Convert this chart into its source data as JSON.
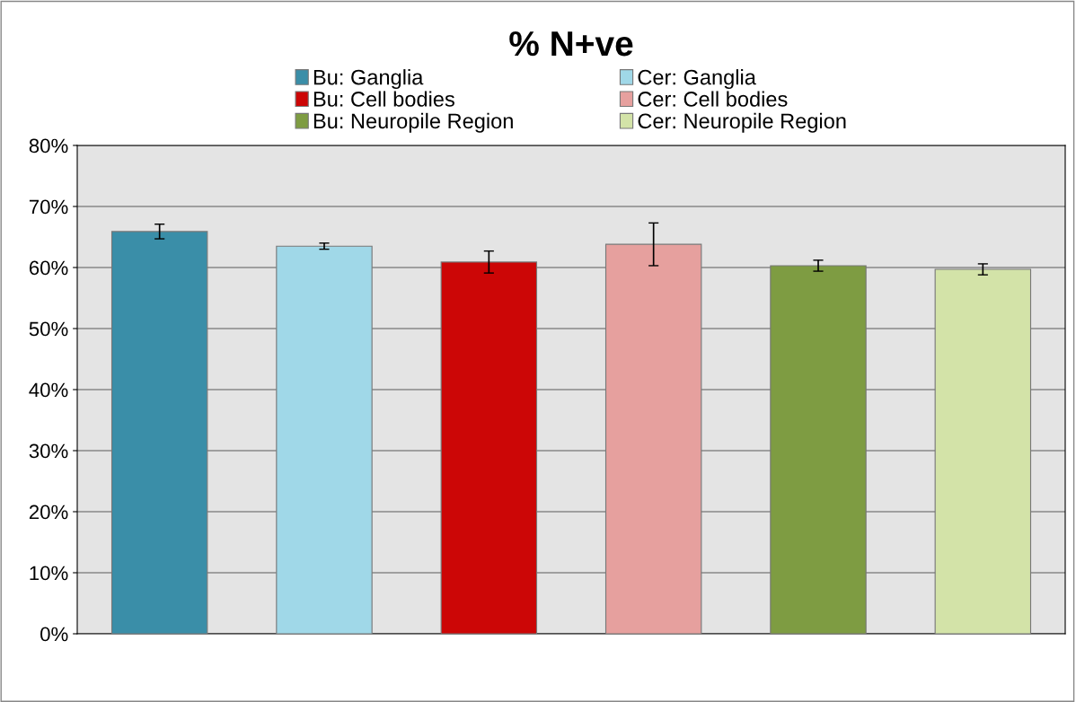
{
  "chart_data": {
    "type": "bar",
    "title": "% N+ve",
    "categories": [
      null,
      null,
      null,
      null,
      null,
      null
    ],
    "series": [
      {
        "name": "Bu: Ganglia",
        "color": "#3a8ea8",
        "values": [
          65.9,
          null,
          null,
          null,
          null,
          null
        ],
        "errors": [
          1.2,
          null,
          null,
          null,
          null,
          null
        ]
      },
      {
        "name": "Cer: Ganglia",
        "color": "#a0d8e8",
        "values": [
          null,
          63.5,
          null,
          null,
          null,
          null
        ],
        "errors": [
          null,
          0.5,
          null,
          null,
          null,
          null
        ]
      },
      {
        "name": "Bu: Cell bodies",
        "color": "#cc0606",
        "values": [
          null,
          null,
          60.9,
          null,
          null,
          null
        ],
        "errors": [
          null,
          null,
          1.8,
          null,
          null,
          null
        ]
      },
      {
        "name": "Cer: Cell bodies",
        "color": "#e6a09e",
        "values": [
          null,
          null,
          null,
          63.8,
          null,
          null
        ],
        "errors": [
          null,
          null,
          null,
          3.5,
          null,
          null
        ]
      },
      {
        "name": "Bu: Neuropile Region",
        "color": "#7e9c42",
        "values": [
          null,
          null,
          null,
          null,
          60.3,
          null
        ],
        "errors": [
          null,
          null,
          null,
          null,
          0.9,
          null
        ]
      },
      {
        "name": "Cer: Neuropile Region",
        "color": "#d3e3a8",
        "values": [
          null,
          null,
          null,
          null,
          null,
          59.7
        ],
        "errors": [
          null,
          null,
          null,
          null,
          null,
          0.9
        ]
      }
    ],
    "ylim": [
      0,
      80
    ],
    "yticks": [
      {
        "value": 0,
        "label": "0%"
      },
      {
        "value": 10,
        "label": "10%"
      },
      {
        "value": 20,
        "label": "20%"
      },
      {
        "value": 30,
        "label": "30%"
      },
      {
        "value": 40,
        "label": "40%"
      },
      {
        "value": 50,
        "label": "50%"
      },
      {
        "value": 60,
        "label": "60%"
      },
      {
        "value": 70,
        "label": "70%"
      },
      {
        "value": 80,
        "label": "80%"
      }
    ],
    "grid": "y",
    "legend": "top"
  }
}
